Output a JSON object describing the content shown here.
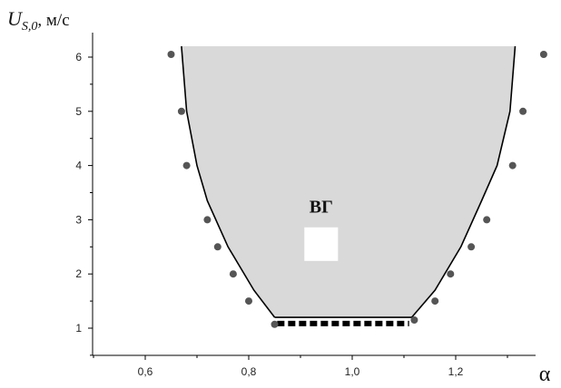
{
  "chart_data": {
    "type": "scatter",
    "xlabel": "α",
    "ylabel": {
      "main": "U",
      "sub": "S,0",
      "unit": ", м/с"
    },
    "xlim": [
      0.5,
      1.5
    ],
    "ylim": [
      0.6,
      6.4
    ],
    "xticks": [
      {
        "v": 0.6,
        "label": "0,6"
      },
      {
        "v": 0.8,
        "label": "0,8"
      },
      {
        "v": 1.0,
        "label": "1,0"
      },
      {
        "v": 1.2,
        "label": "1,2"
      }
    ],
    "yticks": [
      {
        "v": 1,
        "label": "1"
      },
      {
        "v": 2,
        "label": "2"
      },
      {
        "v": 3,
        "label": "3"
      },
      {
        "v": 4,
        "label": "4"
      },
      {
        "v": 5,
        "label": "5"
      },
      {
        "v": 6,
        "label": "6"
      }
    ],
    "region": {
      "label": "ВГ",
      "label_pos": [
        0.94,
        3.25
      ],
      "fill": "#d9d9d9",
      "left_boundary": [
        [
          0.67,
          6.2
        ],
        [
          0.68,
          5.0
        ],
        [
          0.7,
          4.0
        ],
        [
          0.72,
          3.35
        ],
        [
          0.76,
          2.5
        ],
        [
          0.81,
          1.7
        ],
        [
          0.85,
          1.2
        ]
      ],
      "right_boundary": [
        [
          1.115,
          1.2
        ],
        [
          1.16,
          1.7
        ],
        [
          1.21,
          2.5
        ],
        [
          1.25,
          3.35
        ],
        [
          1.28,
          4.0
        ],
        [
          1.305,
          5.0
        ],
        [
          1.315,
          6.2
        ]
      ]
    },
    "series": [
      {
        "type": "scatter",
        "color": "#555555",
        "points": [
          [
            0.65,
            6.05
          ],
          [
            0.67,
            5.0
          ],
          [
            0.68,
            4.0
          ],
          [
            0.72,
            3.0
          ],
          [
            0.74,
            2.5
          ],
          [
            0.77,
            2.0
          ],
          [
            0.8,
            1.5
          ],
          [
            0.85,
            1.07
          ],
          [
            1.12,
            1.15
          ],
          [
            1.16,
            1.5
          ],
          [
            1.19,
            2.0
          ],
          [
            1.23,
            2.5
          ],
          [
            1.26,
            3.0
          ],
          [
            1.31,
            4.0
          ],
          [
            1.33,
            5.0
          ],
          [
            1.37,
            6.05
          ]
        ]
      }
    ],
    "bottom_segment": {
      "x": [
        0.855,
        1.11
      ],
      "y": 1.12,
      "color": "#000000"
    },
    "white_marker": {
      "x": 0.94,
      "y": 2.55,
      "size": 0.065
    }
  }
}
